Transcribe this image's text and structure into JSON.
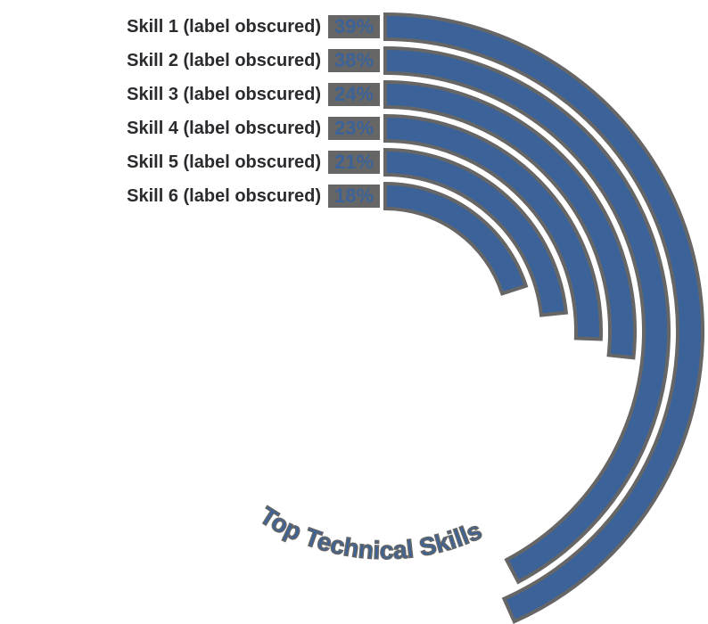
{
  "chart_data": {
    "type": "bar",
    "subtype": "radial-bar",
    "title": "Top Technical Skills",
    "categories": [
      "Skill 1 (label obscured)",
      "Skill 2 (label obscured)",
      "Skill 3 (label obscured)",
      "Skill 4 (label obscured)",
      "Skill 5 (label obscured)",
      "Skill 6 (label obscured)"
    ],
    "values": [
      39,
      38,
      24,
      23,
      21,
      18
    ],
    "value_labels": [
      "39%",
      "38%",
      "24%",
      "23%",
      "21%",
      "18%"
    ],
    "unit": "%",
    "xlabel": "",
    "ylabel": "",
    "grid": false,
    "legend": "none",
    "colors": {
      "bar": "#3b6399",
      "bar_outline": "#666666",
      "label_text": "#2a2b2e",
      "value_text": "#3b6399"
    },
    "degrees_per_percent": 4
  }
}
